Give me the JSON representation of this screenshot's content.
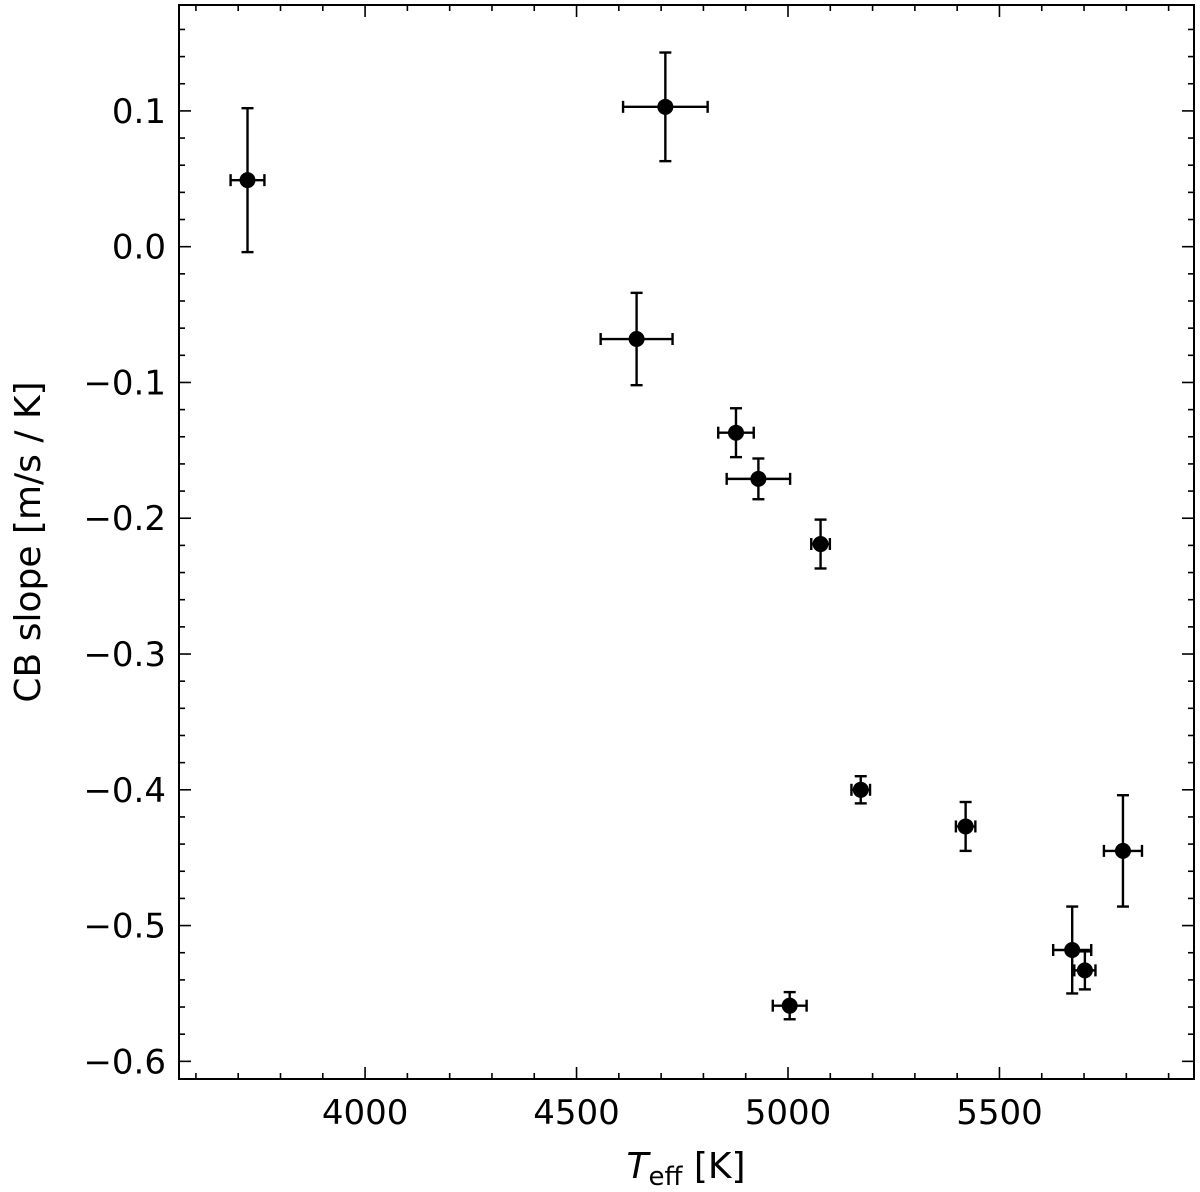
{
  "chart_data": {
    "type": "scatter",
    "xlabel_main": "T",
    "xlabel_sub": "eff",
    "xlabel_unit": " [K]",
    "ylabel": "CB slope [m/s / K]",
    "xlim": [
      3560,
      5960
    ],
    "ylim": [
      -0.613,
      0.178
    ],
    "x_ticks": [
      4000,
      4500,
      5000,
      5500
    ],
    "x_tick_labels": [
      "4000",
      "4500",
      "5000",
      "5500"
    ],
    "y_ticks": [
      0.1,
      0.0,
      -0.1,
      -0.2,
      -0.3,
      -0.4,
      -0.5,
      -0.6
    ],
    "y_tick_labels": [
      "0.1",
      "0.0",
      "−0.1",
      "−0.2",
      "−0.3",
      "−0.4",
      "−0.5",
      "−0.6"
    ],
    "minor_x_step": 100,
    "minor_y_step": 0.02,
    "grid": false,
    "marker_color": "#000000",
    "points": [
      {
        "x": 3722,
        "y": 0.049,
        "xerr": 40,
        "yerr_lo": 0.053,
        "yerr_hi": 0.053
      },
      {
        "x": 4710,
        "y": 0.103,
        "xerr": 100,
        "yerr_lo": 0.04,
        "yerr_hi": 0.04
      },
      {
        "x": 4642,
        "y": -0.068,
        "xerr": 85,
        "yerr_lo": 0.034,
        "yerr_hi": 0.034
      },
      {
        "x": 4877,
        "y": -0.137,
        "xerr": 42,
        "yerr_lo": 0.018,
        "yerr_hi": 0.018
      },
      {
        "x": 4930,
        "y": -0.171,
        "xerr": 75,
        "yerr_lo": 0.015,
        "yerr_hi": 0.015
      },
      {
        "x": 5077,
        "y": -0.219,
        "xerr": 22,
        "yerr_lo": 0.018,
        "yerr_hi": 0.018
      },
      {
        "x": 5004,
        "y": -0.559,
        "xerr": 40,
        "yerr_lo": 0.01,
        "yerr_hi": 0.01
      },
      {
        "x": 5172,
        "y": -0.4,
        "xerr": 22,
        "yerr_lo": 0.01,
        "yerr_hi": 0.01
      },
      {
        "x": 5420,
        "y": -0.427,
        "xerr": 23,
        "yerr_lo": 0.018,
        "yerr_hi": 0.018
      },
      {
        "x": 5672,
        "y": -0.518,
        "xerr": 45,
        "yerr_lo": 0.032,
        "yerr_hi": 0.032
      },
      {
        "x": 5702,
        "y": -0.533,
        "xerr": 25,
        "yerr_lo": 0.014,
        "yerr_hi": 0.014
      },
      {
        "x": 5792,
        "y": -0.445,
        "xerr": 45,
        "yerr_lo": 0.041,
        "yerr_hi": 0.041
      }
    ]
  }
}
